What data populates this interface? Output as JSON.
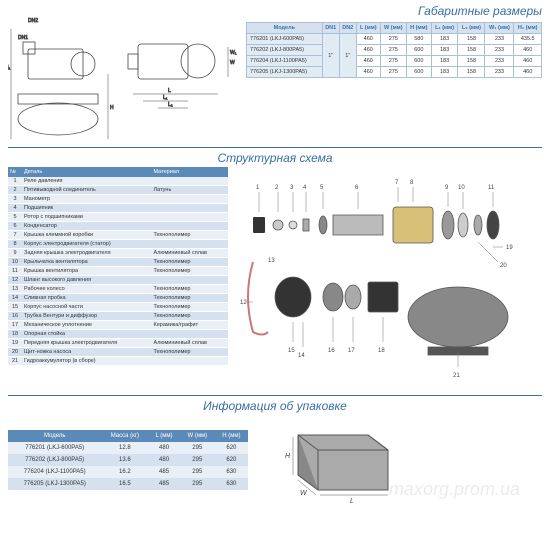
{
  "titles": {
    "dims": "Габаритные размеры",
    "struct": "Структурная схема",
    "pkg": "Информация об упаковке"
  },
  "dims": {
    "headers": [
      "Модель",
      "DN1",
      "DN2",
      "L (мм)",
      "W (мм)",
      "H (мм)",
      "L₁ (мм)",
      "L₂ (мм)",
      "W₁ (мм)",
      "H₁ (мм)"
    ],
    "dn1": "1\"",
    "dn2": "1\"",
    "rows": [
      {
        "m": "776201 (LKJ-600PA5)",
        "l": "460",
        "w": "275",
        "h": "580",
        "l1": "183",
        "l2": "158",
        "w1": "233",
        "h1": "435.5"
      },
      {
        "m": "776202 (LKJ-800PA5)",
        "l": "460",
        "w": "275",
        "h": "600",
        "l1": "183",
        "l2": "158",
        "w1": "233",
        "h1": "460"
      },
      {
        "m": "776204 (LKJ-1100PA5)",
        "l": "460",
        "w": "275",
        "h": "600",
        "l1": "183",
        "l2": "158",
        "w1": "233",
        "h1": "460"
      },
      {
        "m": "776205 (LKJ-1300PA5)",
        "l": "460",
        "w": "275",
        "h": "600",
        "l1": "183",
        "l2": "158",
        "w1": "233",
        "h1": "460"
      }
    ]
  },
  "bom": {
    "headers": [
      "№",
      "Деталь",
      "Материал"
    ],
    "rows": [
      {
        "n": "1",
        "d": "Реле давления",
        "m": ""
      },
      {
        "n": "2",
        "d": "Пятивыводной соединитель",
        "m": "Латунь"
      },
      {
        "n": "3",
        "d": "Манометр",
        "m": ""
      },
      {
        "n": "4",
        "d": "Подшипник",
        "m": ""
      },
      {
        "n": "5",
        "d": "Ротор с подшипниками",
        "m": ""
      },
      {
        "n": "6",
        "d": "Конденсатор",
        "m": ""
      },
      {
        "n": "7",
        "d": "Крышка клеммной коробки",
        "m": "Технополимер"
      },
      {
        "n": "8",
        "d": "Корпус электродвигателя (статор)",
        "m": ""
      },
      {
        "n": "9",
        "d": "Задняя крышка электродвигателя",
        "m": "Алюминиевый сплав"
      },
      {
        "n": "10",
        "d": "Крыльчатка вентилятора",
        "m": "Технополимер"
      },
      {
        "n": "11",
        "d": "Крышка вентилятора",
        "m": "Технополимер"
      },
      {
        "n": "12",
        "d": "Шланг высокого давления",
        "m": ""
      },
      {
        "n": "13",
        "d": "Рабочее колесо",
        "m": "Технополимер"
      },
      {
        "n": "14",
        "d": "Сливная пробка",
        "m": "Технополимер"
      },
      {
        "n": "15",
        "d": "Корпус насосной части",
        "m": "Технополимер"
      },
      {
        "n": "16",
        "d": "Трубка Вентури и диффузор",
        "m": "Технополимер"
      },
      {
        "n": "17",
        "d": "Механическое уплотнение",
        "m": "Керамика/графит"
      },
      {
        "n": "18",
        "d": "Опорная стойка",
        "m": ""
      },
      {
        "n": "19",
        "d": "Передняя крышка электродвигателя",
        "m": "Алюминиевый сплав"
      },
      {
        "n": "20",
        "d": "Щит-ножка насоса",
        "m": "Технополимер"
      },
      {
        "n": "21",
        "d": "Гидроаккумулятор (в сборе)",
        "m": ""
      }
    ]
  },
  "pkg": {
    "headers": [
      "Модель",
      "Масса (кг)",
      "L (мм)",
      "W (мм)",
      "H (мм)"
    ],
    "rows": [
      {
        "m": "776201 (LKJ-600PA5)",
        "kg": "12.8",
        "l": "480",
        "w": "295",
        "h": "620"
      },
      {
        "m": "776202 (LKJ-800PA5)",
        "kg": "13.6",
        "l": "480",
        "w": "295",
        "h": "620"
      },
      {
        "m": "776204 (LKJ-1100PA5)",
        "kg": "16.2",
        "l": "485",
        "w": "295",
        "h": "630"
      },
      {
        "m": "776205 (LKJ-1300PA5)",
        "kg": "16.5",
        "l": "485",
        "w": "295",
        "h": "630"
      }
    ]
  },
  "drawing_labels": {
    "dn1": "DN1",
    "dn2": "DN2",
    "l": "L",
    "l1": "L₁",
    "l2": "L₂",
    "w": "W",
    "w1": "W₁",
    "h": "H",
    "h1": "H₁"
  },
  "box_labels": {
    "l": "L",
    "w": "W",
    "h": "H"
  },
  "watermark": "maxorg.prom.ua",
  "colors": {
    "accent": "#3a6ea5",
    "header": "#5c8ab8",
    "row_a": "#d5e1ef",
    "row_b": "#e8eff6",
    "line": "#444"
  }
}
